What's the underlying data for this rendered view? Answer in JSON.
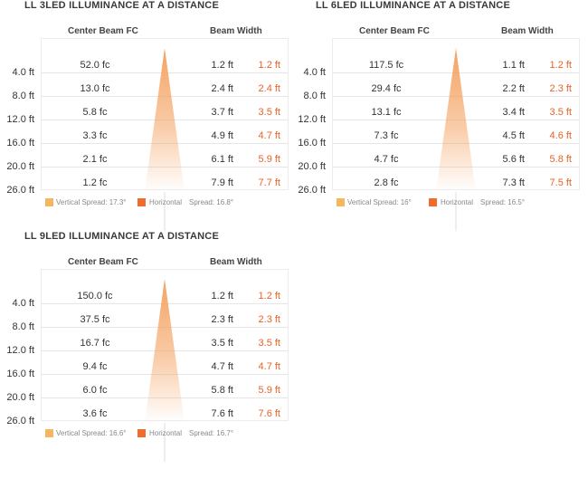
{
  "colors": {
    "vertical": "#f5b65f",
    "horizontal": "#ef6c2e",
    "beam": "#f4a261",
    "horizontal_text": "#e8632a"
  },
  "column_headers": {
    "fc": "Center Beam FC",
    "width": "Beam Width"
  },
  "chart_data": [
    {
      "type": "table",
      "title": "LL 3LED ILLUMINANCE AT A DISTANCE",
      "distances": [
        "4.0 ft",
        "8.0 ft",
        "12.0 ft",
        "16.0 ft",
        "20.0 ft",
        "26.0 ft"
      ],
      "center_beam_fc": [
        "52.0 fc",
        "13.0 fc",
        "5.8 fc",
        "3.3 fc",
        "2.1 fc",
        "1.2 fc"
      ],
      "vertical_width": [
        "1.2 ft",
        "2.4 ft",
        "3.7 ft",
        "4.9 ft",
        "6.1 ft",
        "7.9 ft"
      ],
      "horizontal_width": [
        "1.2 ft",
        "2.4 ft",
        "3.5 ft",
        "4.7 ft",
        "5.9 ft",
        "7.7 ft"
      ],
      "legend": {
        "vertical": "Vertical Spread: 17.3°",
        "horizontal": "Horizontal",
        "horizontal_spread": "Spread: 16.8°"
      }
    },
    {
      "type": "table",
      "title": "LL 6LED ILLUMINANCE AT A DISTANCE",
      "distances": [
        "4.0 ft",
        "8.0 ft",
        "12.0 ft",
        "16.0 ft",
        "20.0 ft",
        "26.0 ft"
      ],
      "center_beam_fc": [
        "117.5 fc",
        "29.4 fc",
        "13.1 fc",
        "7.3 fc",
        "4.7 fc",
        "2.8 fc"
      ],
      "vertical_width": [
        "1.1 ft",
        "2.2 ft",
        "3.4 ft",
        "4.5 ft",
        "5.6 ft",
        "7.3 ft"
      ],
      "horizontal_width": [
        "1.2 ft",
        "2.3 ft",
        "3.5 ft",
        "4.6 ft",
        "5.8 ft",
        "7.5 ft"
      ],
      "legend": {
        "vertical": "Vertical Spread: 16°",
        "horizontal": "Horizontal",
        "horizontal_spread": "Spread: 16.5°"
      }
    },
    {
      "type": "table",
      "title": "LL 9LED ILLUMINANCE AT A DISTANCE",
      "distances": [
        "4.0 ft",
        "8.0 ft",
        "12.0 ft",
        "16.0 ft",
        "20.0 ft",
        "26.0 ft"
      ],
      "center_beam_fc": [
        "150.0 fc",
        "37.5 fc",
        "16.7 fc",
        "9.4 fc",
        "6.0 fc",
        "3.6 fc"
      ],
      "vertical_width": [
        "1.2 ft",
        "2.3 ft",
        "3.5 ft",
        "4.7 ft",
        "5.8 ft",
        "7.6 ft"
      ],
      "horizontal_width": [
        "1.2 ft",
        "2.3 ft",
        "3.5 ft",
        "4.7 ft",
        "5.9 ft",
        "7.6 ft"
      ],
      "legend": {
        "vertical": "Vertical Spread: 16.6°",
        "horizontal": "Horizontal",
        "horizontal_spread": "Spread: 16.7°"
      }
    }
  ]
}
